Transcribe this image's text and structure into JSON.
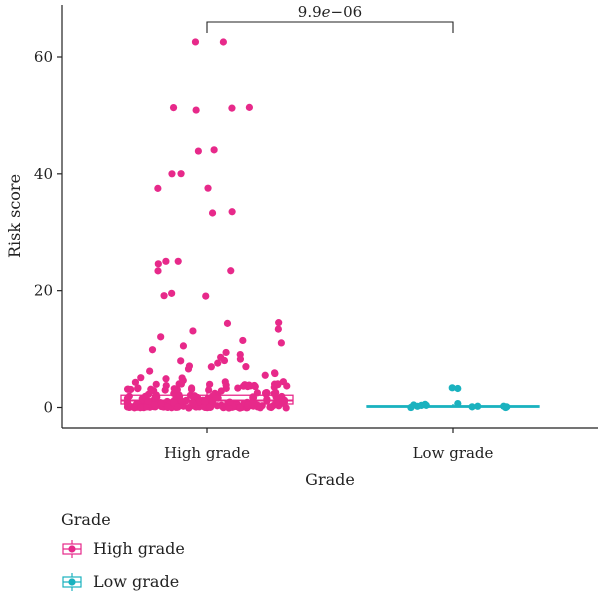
{
  "chart_data": {
    "type": "box_jitter",
    "xlabel": "Grade",
    "ylabel": "Risk score",
    "ylim": [
      -3,
      66
    ],
    "yticks": [
      0,
      20,
      40,
      60
    ],
    "categories": [
      "High grade",
      "Low grade"
    ],
    "colors": {
      "High grade": "#e7298a",
      "Low grade": "#1ab2bf"
    },
    "legend": {
      "title": "Grade",
      "position": "bottom-left",
      "entries": [
        "High grade",
        "Low grade"
      ]
    },
    "annotation": {
      "text_prefix": "9.9",
      "text_exp": "e",
      "text_suffix": "−06"
    },
    "groups": [
      {
        "name": "High grade",
        "box": {
          "q1": 0.6,
          "median": 1.2,
          "q3": 2.1,
          "whisker_low": 0.0,
          "whisker_high": 4.2
        },
        "outliers": [
          62.5,
          62.5,
          51.2,
          51.4,
          51.0,
          51.3,
          44.0,
          44.0,
          40.0,
          40.0,
          37.5,
          37.4,
          33.5,
          33.4,
          25.0,
          25.0,
          24.5,
          23.5,
          23.4,
          19.5,
          19.2,
          19.0,
          14.5,
          14.5,
          13.5,
          13.0,
          12.0,
          11.5,
          11.0,
          10.5,
          10.0,
          9.5,
          9.0,
          8.5,
          8.4,
          8.0,
          8.0,
          7.5,
          7.2,
          7.0,
          7.0,
          6.5,
          6.2,
          6.0,
          5.8,
          5.5,
          5.2,
          5.0,
          4.8,
          4.6,
          4.5,
          4.4,
          4.3
        ],
        "n_points": 260,
        "bulk_range": [
          0.0,
          4.2
        ]
      },
      {
        "name": "Low grade",
        "box": {
          "q1": 0.05,
          "median": 0.15,
          "q3": 0.3,
          "whisker_low": 0.0,
          "whisker_high": 0.6
        },
        "points": [
          3.3,
          3.3,
          0.6,
          0.5,
          0.4,
          0.3,
          0.3,
          0.2,
          0.2,
          0.15,
          0.1,
          0.1,
          0.05,
          0.0
        ],
        "n_points": 14
      }
    ]
  }
}
